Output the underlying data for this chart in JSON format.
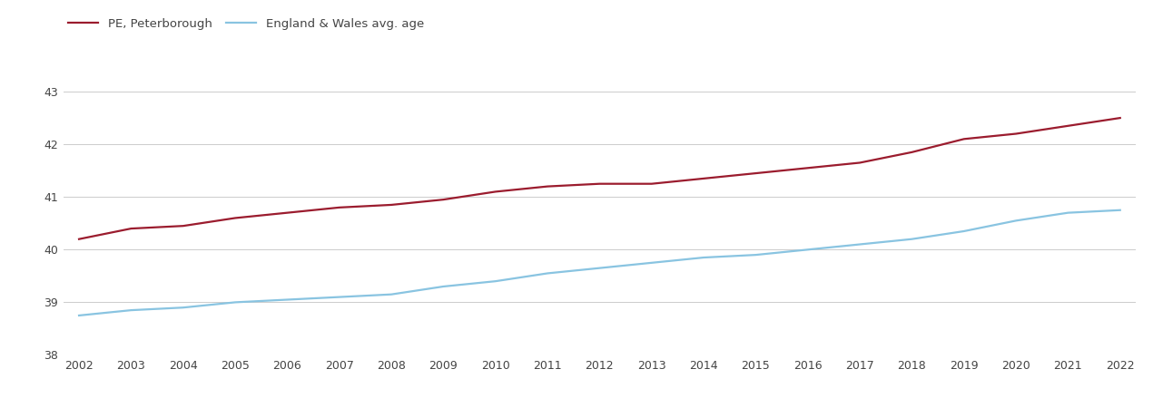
{
  "years": [
    2002,
    2003,
    2004,
    2005,
    2006,
    2007,
    2008,
    2009,
    2010,
    2011,
    2012,
    2013,
    2014,
    2015,
    2016,
    2017,
    2018,
    2019,
    2020,
    2021,
    2022
  ],
  "pe_peterborough": [
    40.2,
    40.4,
    40.45,
    40.6,
    40.7,
    40.8,
    40.85,
    40.95,
    41.1,
    41.2,
    41.25,
    41.25,
    41.35,
    41.45,
    41.55,
    41.65,
    41.85,
    42.1,
    42.2,
    42.35,
    42.5
  ],
  "england_wales": [
    38.75,
    38.85,
    38.9,
    39.0,
    39.05,
    39.1,
    39.15,
    39.3,
    39.4,
    39.55,
    39.65,
    39.75,
    39.85,
    39.9,
    40.0,
    40.1,
    40.2,
    40.35,
    40.55,
    40.7,
    40.75
  ],
  "pe_color": "#9b1c2e",
  "ew_color": "#89c4e1",
  "background_color": "#ffffff",
  "ylim": [
    38,
    43.5
  ],
  "yticks": [
    38,
    39,
    40,
    41,
    42,
    43
  ],
  "legend_label_pe": "PE, Peterborough",
  "legend_label_ew": "England & Wales avg. age",
  "line_width": 1.6
}
